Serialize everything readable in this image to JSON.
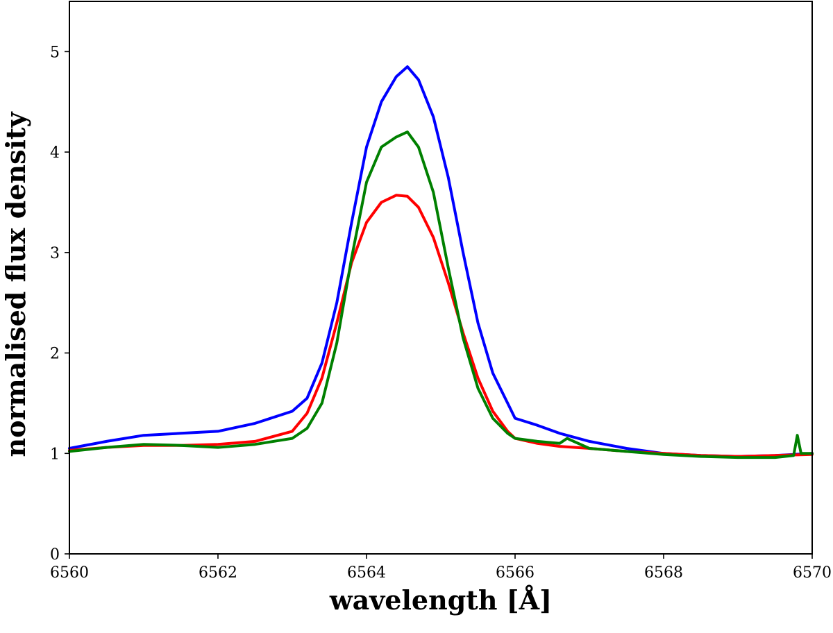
{
  "chart_data": {
    "type": "line",
    "title": "",
    "xlabel": "wavelength [Å]",
    "ylabel": "normalised flux density",
    "xlim": [
      6560,
      6570
    ],
    "ylim": [
      0,
      5.5
    ],
    "xticks": [
      6560,
      6562,
      6564,
      6566,
      6568,
      6570
    ],
    "yticks": [
      0,
      1,
      2,
      3,
      4,
      5
    ],
    "grid": false,
    "legend": "none",
    "series": [
      {
        "color": "#0000ff",
        "x": [
          6560.0,
          6560.5,
          6561.0,
          6561.5,
          6562.0,
          6562.5,
          6563.0,
          6563.2,
          6563.4,
          6563.6,
          6563.8,
          6564.0,
          6564.2,
          6564.4,
          6564.55,
          6564.7,
          6564.9,
          6565.1,
          6565.3,
          6565.5,
          6565.7,
          6565.9,
          6566.0,
          6566.3,
          6566.6,
          6567.0,
          6567.5,
          6568.0,
          6568.5,
          6569.0,
          6569.5,
          6570.0
        ],
        "y": [
          1.05,
          1.12,
          1.18,
          1.2,
          1.22,
          1.3,
          1.42,
          1.55,
          1.9,
          2.5,
          3.3,
          4.05,
          4.5,
          4.75,
          4.85,
          4.72,
          4.35,
          3.75,
          3.0,
          2.3,
          1.8,
          1.5,
          1.35,
          1.28,
          1.2,
          1.12,
          1.05,
          1.0,
          0.98,
          0.97,
          0.98,
          1.0
        ]
      },
      {
        "color": "#ff0000",
        "x": [
          6560.0,
          6560.5,
          6561.0,
          6561.5,
          6562.0,
          6562.5,
          6563.0,
          6563.2,
          6563.4,
          6563.6,
          6563.8,
          6564.0,
          6564.2,
          6564.4,
          6564.55,
          6564.7,
          6564.9,
          6565.1,
          6565.3,
          6565.5,
          6565.7,
          6565.9,
          6566.0,
          6566.3,
          6566.6,
          6567.0,
          6567.5,
          6568.0,
          6568.5,
          6569.0,
          6569.5,
          6570.0
        ],
        "y": [
          1.03,
          1.06,
          1.08,
          1.08,
          1.09,
          1.12,
          1.22,
          1.4,
          1.75,
          2.3,
          2.9,
          3.3,
          3.5,
          3.57,
          3.56,
          3.45,
          3.15,
          2.7,
          2.2,
          1.75,
          1.42,
          1.22,
          1.15,
          1.1,
          1.07,
          1.05,
          1.02,
          1.0,
          0.98,
          0.97,
          0.98,
          0.99
        ]
      },
      {
        "color": "#008000",
        "x": [
          6560.0,
          6560.5,
          6561.0,
          6561.5,
          6562.0,
          6562.5,
          6563.0,
          6563.2,
          6563.4,
          6563.6,
          6563.8,
          6564.0,
          6564.2,
          6564.4,
          6564.55,
          6564.7,
          6564.9,
          6565.1,
          6565.3,
          6565.5,
          6565.7,
          6565.9,
          6566.0,
          6566.3,
          6566.6,
          6566.7,
          6567.0,
          6567.5,
          6568.0,
          6568.5,
          6569.0,
          6569.5,
          6569.75,
          6569.8,
          6569.85,
          6570.0
        ],
        "y": [
          1.02,
          1.06,
          1.09,
          1.08,
          1.06,
          1.09,
          1.15,
          1.25,
          1.5,
          2.1,
          2.95,
          3.7,
          4.05,
          4.15,
          4.2,
          4.05,
          3.6,
          2.85,
          2.15,
          1.65,
          1.35,
          1.2,
          1.15,
          1.12,
          1.1,
          1.15,
          1.05,
          1.02,
          0.99,
          0.97,
          0.96,
          0.96,
          0.98,
          1.18,
          1.0,
          1.0
        ]
      }
    ]
  }
}
